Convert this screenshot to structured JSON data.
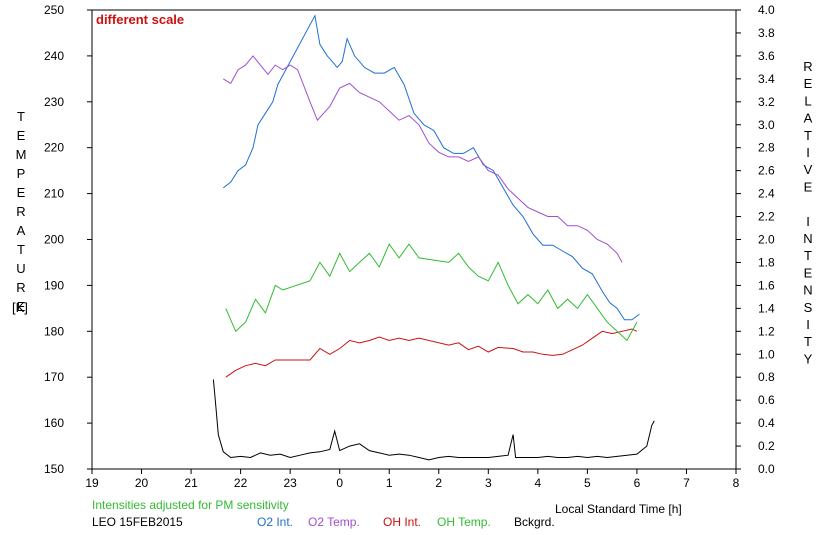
{
  "chart_data": {
    "type": "line",
    "annotation": "different scale",
    "note": "Intensities adjusted for PM sensitivity",
    "station": "LEO 15FEB2015",
    "xlabel": "Local Standard Time [h]",
    "ylabel_left": "TEMPERATURE",
    "ylabel_left_unit": "[K]",
    "ylabel_right": "RELATIVE INTENSITY",
    "x_ticks": [
      "19",
      "20",
      "21",
      "22",
      "23",
      "0",
      "1",
      "2",
      "3",
      "4",
      "5",
      "6",
      "7",
      "8"
    ],
    "y_left_ticks": [
      "150",
      "160",
      "170",
      "180",
      "190",
      "200",
      "210",
      "220",
      "230",
      "240",
      "250"
    ],
    "y_right_ticks": [
      "0.0",
      "0.2",
      "0.4",
      "0.6",
      "0.8",
      "1.0",
      "1.2",
      "1.4",
      "1.6",
      "1.8",
      "2.0",
      "2.2",
      "2.4",
      "2.6",
      "2.8",
      "3.0",
      "3.2",
      "3.4",
      "3.6",
      "3.8",
      "4.0"
    ],
    "xlim": [
      19,
      32
    ],
    "ylim_left": [
      150,
      250
    ],
    "ylim_right": [
      0,
      4
    ],
    "legend": [
      {
        "label": "O2 Int.",
        "color": "#1f6fd0"
      },
      {
        "label": "O2 Temp.",
        "color": "#a050d0"
      },
      {
        "label": "OH Int.",
        "color": "#cc1111"
      },
      {
        "label": "OH Temp.",
        "color": "#33bb33"
      },
      {
        "label": "Bckgrd.",
        "color": "#000000"
      }
    ],
    "series": [
      {
        "name": "O2 Int.",
        "axis": "right",
        "color": "#1f6fd0",
        "points": [
          [
            21.65,
            2.45
          ],
          [
            21.8,
            2.5
          ],
          [
            21.95,
            2.6
          ],
          [
            22.1,
            2.65
          ],
          [
            22.25,
            2.8
          ],
          [
            22.35,
            3.0
          ],
          [
            22.5,
            3.1
          ],
          [
            22.65,
            3.2
          ],
          [
            22.75,
            3.35
          ],
          [
            23.5,
            3.95
          ],
          [
            23.6,
            3.7
          ],
          [
            23.75,
            3.6
          ],
          [
            23.85,
            3.55
          ],
          [
            23.95,
            3.5
          ],
          [
            24.05,
            3.55
          ],
          [
            24.15,
            3.75
          ],
          [
            24.3,
            3.6
          ],
          [
            24.5,
            3.5
          ],
          [
            24.7,
            3.45
          ],
          [
            24.9,
            3.45
          ],
          [
            25.1,
            3.5
          ],
          [
            25.3,
            3.35
          ],
          [
            25.5,
            3.1
          ],
          [
            25.7,
            3.0
          ],
          [
            25.9,
            2.95
          ],
          [
            26.1,
            2.8
          ],
          [
            26.3,
            2.75
          ],
          [
            26.5,
            2.75
          ],
          [
            26.7,
            2.8
          ],
          [
            26.9,
            2.65
          ],
          [
            27.1,
            2.6
          ],
          [
            27.3,
            2.45
          ],
          [
            27.5,
            2.3
          ],
          [
            27.7,
            2.2
          ],
          [
            27.9,
            2.05
          ],
          [
            28.1,
            1.95
          ],
          [
            28.3,
            1.95
          ],
          [
            28.5,
            1.9
          ],
          [
            28.7,
            1.85
          ],
          [
            28.9,
            1.75
          ],
          [
            29.1,
            1.7
          ],
          [
            29.3,
            1.55
          ],
          [
            29.45,
            1.45
          ],
          [
            29.6,
            1.4
          ],
          [
            29.75,
            1.3
          ],
          [
            29.9,
            1.3
          ],
          [
            30.05,
            1.35
          ]
        ]
      },
      {
        "name": "O2 Temp.",
        "axis": "left",
        "color": "#a050d0",
        "points": [
          [
            21.65,
            235
          ],
          [
            21.8,
            234
          ],
          [
            21.95,
            237
          ],
          [
            22.1,
            238
          ],
          [
            22.25,
            240
          ],
          [
            22.4,
            238
          ],
          [
            22.55,
            236
          ],
          [
            22.7,
            238
          ],
          [
            22.85,
            237
          ],
          [
            23.0,
            238
          ],
          [
            23.15,
            237
          ],
          [
            23.4,
            230
          ],
          [
            23.55,
            226
          ],
          [
            23.8,
            229
          ],
          [
            24.0,
            233
          ],
          [
            24.2,
            234
          ],
          [
            24.4,
            232
          ],
          [
            24.6,
            231
          ],
          [
            24.8,
            230
          ],
          [
            25.0,
            228
          ],
          [
            25.2,
            226
          ],
          [
            25.4,
            227
          ],
          [
            25.6,
            225
          ],
          [
            25.8,
            221
          ],
          [
            26.0,
            219
          ],
          [
            26.2,
            218
          ],
          [
            26.4,
            218
          ],
          [
            26.6,
            217
          ],
          [
            26.8,
            218
          ],
          [
            27.0,
            215
          ],
          [
            27.2,
            214
          ],
          [
            27.4,
            211
          ],
          [
            27.6,
            209
          ],
          [
            27.8,
            207
          ],
          [
            28.0,
            206
          ],
          [
            28.2,
            205
          ],
          [
            28.4,
            205
          ],
          [
            28.6,
            203
          ],
          [
            28.8,
            203
          ],
          [
            29.0,
            202
          ],
          [
            29.2,
            200
          ],
          [
            29.4,
            199
          ],
          [
            29.6,
            197
          ],
          [
            29.7,
            195
          ]
        ]
      },
      {
        "name": "OH Int.",
        "axis": "right",
        "color": "#cc1111",
        "points": [
          [
            21.7,
            0.8
          ],
          [
            21.9,
            0.86
          ],
          [
            22.1,
            0.9
          ],
          [
            22.3,
            0.92
          ],
          [
            22.5,
            0.9
          ],
          [
            22.7,
            0.95
          ],
          [
            23.4,
            0.95
          ],
          [
            23.6,
            1.05
          ],
          [
            23.8,
            1.0
          ],
          [
            24.0,
            1.05
          ],
          [
            24.2,
            1.12
          ],
          [
            24.4,
            1.1
          ],
          [
            24.6,
            1.12
          ],
          [
            24.8,
            1.15
          ],
          [
            25.0,
            1.12
          ],
          [
            25.2,
            1.14
          ],
          [
            25.4,
            1.12
          ],
          [
            25.6,
            1.14
          ],
          [
            26.2,
            1.08
          ],
          [
            26.4,
            1.1
          ],
          [
            26.6,
            1.04
          ],
          [
            26.8,
            1.07
          ],
          [
            27.0,
            1.02
          ],
          [
            27.2,
            1.06
          ],
          [
            27.5,
            1.05
          ],
          [
            27.7,
            1.02
          ],
          [
            27.9,
            1.02
          ],
          [
            28.1,
            1.0
          ],
          [
            28.3,
            0.99
          ],
          [
            28.5,
            1.0
          ],
          [
            28.7,
            1.04
          ],
          [
            28.9,
            1.08
          ],
          [
            29.1,
            1.14
          ],
          [
            29.3,
            1.2
          ],
          [
            29.5,
            1.18
          ],
          [
            29.7,
            1.2
          ],
          [
            29.9,
            1.22
          ],
          [
            30.0,
            1.2
          ]
        ]
      },
      {
        "name": "OH Temp.",
        "axis": "left",
        "color": "#33bb33",
        "points": [
          [
            21.7,
            185
          ],
          [
            21.9,
            180
          ],
          [
            22.1,
            182
          ],
          [
            22.3,
            187
          ],
          [
            22.5,
            184
          ],
          [
            22.7,
            190
          ],
          [
            22.85,
            189
          ],
          [
            23.4,
            191
          ],
          [
            23.6,
            195
          ],
          [
            23.8,
            192
          ],
          [
            24.0,
            197
          ],
          [
            24.2,
            193
          ],
          [
            24.4,
            195
          ],
          [
            24.6,
            197
          ],
          [
            24.8,
            194
          ],
          [
            25.0,
            199
          ],
          [
            25.2,
            196
          ],
          [
            25.4,
            199
          ],
          [
            25.6,
            196
          ],
          [
            26.2,
            195
          ],
          [
            26.4,
            197
          ],
          [
            26.6,
            194
          ],
          [
            26.8,
            192
          ],
          [
            27.0,
            191
          ],
          [
            27.2,
            195
          ],
          [
            27.4,
            190
          ],
          [
            27.6,
            186
          ],
          [
            27.8,
            188
          ],
          [
            28.0,
            186
          ],
          [
            28.2,
            189
          ],
          [
            28.4,
            185
          ],
          [
            28.6,
            187
          ],
          [
            28.8,
            185
          ],
          [
            29.0,
            188
          ],
          [
            29.2,
            185
          ],
          [
            29.4,
            182
          ],
          [
            29.6,
            180
          ],
          [
            29.8,
            178
          ],
          [
            30.0,
            182
          ]
        ]
      },
      {
        "name": "Bckgrd.",
        "axis": "right",
        "color": "#000000",
        "points": [
          [
            21.45,
            0.78
          ],
          [
            21.5,
            0.55
          ],
          [
            21.55,
            0.3
          ],
          [
            21.65,
            0.15
          ],
          [
            21.8,
            0.1
          ],
          [
            22.0,
            0.11
          ],
          [
            22.2,
            0.1
          ],
          [
            22.4,
            0.14
          ],
          [
            22.6,
            0.12
          ],
          [
            22.8,
            0.13
          ],
          [
            23.0,
            0.1
          ],
          [
            23.2,
            0.12
          ],
          [
            23.4,
            0.14
          ],
          [
            23.6,
            0.15
          ],
          [
            23.8,
            0.17
          ],
          [
            23.9,
            0.33
          ],
          [
            24.0,
            0.16
          ],
          [
            24.2,
            0.2
          ],
          [
            24.4,
            0.22
          ],
          [
            24.6,
            0.16
          ],
          [
            24.8,
            0.14
          ],
          [
            25.0,
            0.12
          ],
          [
            25.2,
            0.13
          ],
          [
            25.4,
            0.12
          ],
          [
            25.6,
            0.1
          ],
          [
            25.8,
            0.08
          ],
          [
            26.0,
            0.1
          ],
          [
            26.2,
            0.11
          ],
          [
            26.4,
            0.1
          ],
          [
            26.6,
            0.1
          ],
          [
            26.8,
            0.1
          ],
          [
            27.0,
            0.1
          ],
          [
            27.2,
            0.11
          ],
          [
            27.4,
            0.12
          ],
          [
            27.5,
            0.3
          ],
          [
            27.55,
            0.1
          ],
          [
            27.8,
            0.1
          ],
          [
            28.0,
            0.1
          ],
          [
            28.2,
            0.11
          ],
          [
            28.4,
            0.1
          ],
          [
            28.6,
            0.1
          ],
          [
            28.8,
            0.11
          ],
          [
            29.0,
            0.1
          ],
          [
            29.2,
            0.11
          ],
          [
            29.4,
            0.1
          ],
          [
            29.6,
            0.11
          ],
          [
            29.8,
            0.12
          ],
          [
            30.0,
            0.13
          ],
          [
            30.2,
            0.2
          ],
          [
            30.3,
            0.38
          ],
          [
            30.35,
            0.42
          ]
        ]
      }
    ]
  }
}
